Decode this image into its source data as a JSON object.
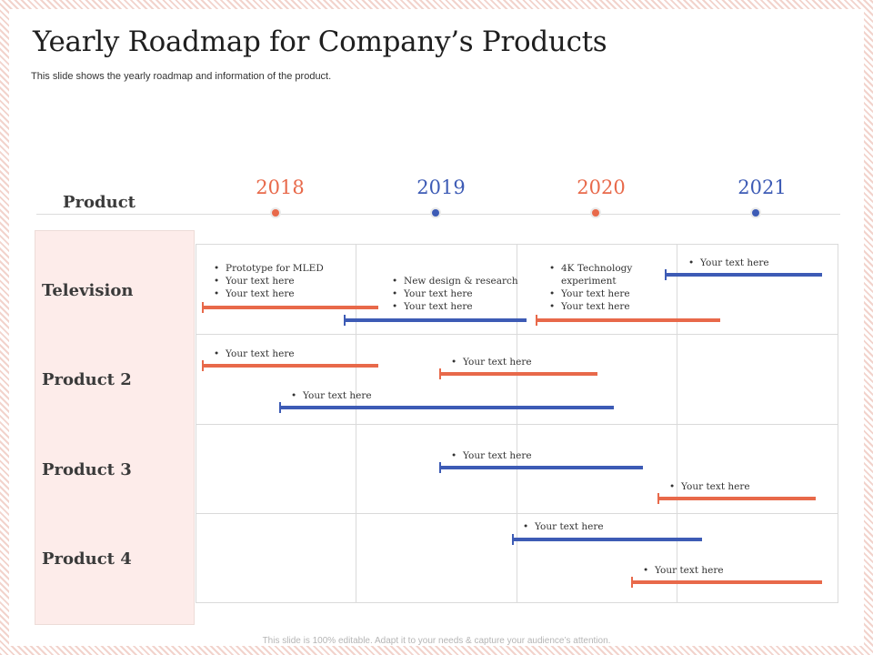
{
  "slide": {
    "title": "Yearly Roadmap for Company’s Products",
    "subtitle": "This slide shows the yearly roadmap and information of the product.",
    "product_header": "Product",
    "footer": "This slide is 100% editable. Adapt it to your needs & capture your audience’s attention."
  },
  "colors": {
    "orange": "#e8694a",
    "blue": "#3d5bb5"
  },
  "years": [
    {
      "label": "2018",
      "color": "orange"
    },
    {
      "label": "2019",
      "color": "blue"
    },
    {
      "label": "2020",
      "color": "orange"
    },
    {
      "label": "2021",
      "color": "blue"
    }
  ],
  "rows": [
    {
      "label": "Television"
    },
    {
      "label": "Product 2"
    },
    {
      "label": "Product 3"
    },
    {
      "label": "Product 4"
    }
  ],
  "notes": [
    [
      "Prototype for MLED",
      "Your text here",
      "Your text here"
    ],
    [
      "New design & research",
      "Your text here",
      "Your text here"
    ],
    [
      "4K Technology experiment",
      "Your text here",
      "Your text here"
    ],
    [
      "Your text here"
    ],
    [
      "Your text here"
    ],
    [
      "Your text here"
    ],
    [
      "Your text here"
    ],
    [
      "Your text here"
    ],
    [
      "Your text here"
    ],
    [
      "Your text here"
    ],
    [
      "Your text here"
    ]
  ],
  "bar_colors": [
    "orange",
    "blue",
    "orange",
    "blue",
    "orange",
    "orange",
    "blue",
    "blue",
    "orange",
    "blue",
    "orange"
  ]
}
